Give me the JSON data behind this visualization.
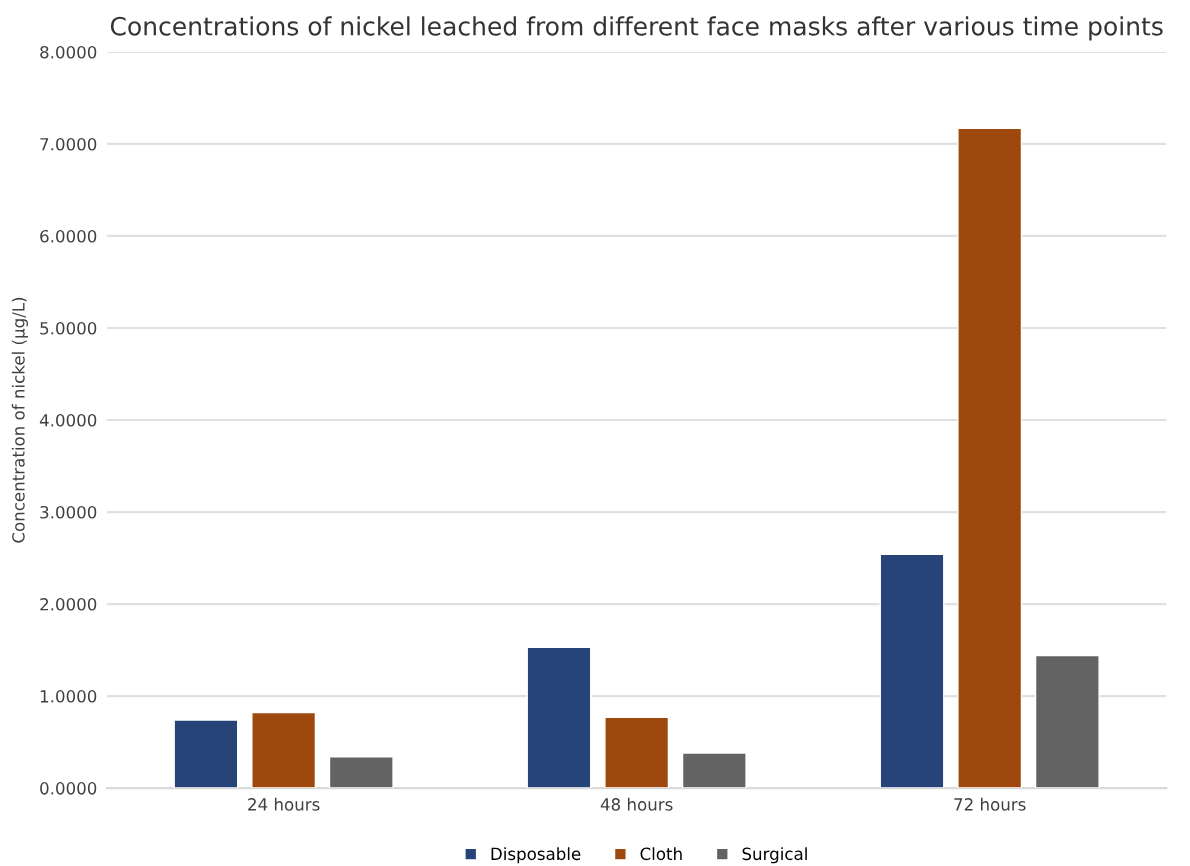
{
  "chart_data": {
    "type": "bar",
    "title": "Concentrations of nickel leached from different face masks after various time points",
    "ylabel": "Concentration of nickel (µg/L)",
    "categories": [
      "24 hours",
      "48 hours",
      "72 hours"
    ],
    "series": [
      {
        "name": "Disposable",
        "color": "#264478",
        "values": [
          0.74,
          1.53,
          2.54
        ]
      },
      {
        "name": "Cloth",
        "color": "#9e480e",
        "values": [
          0.82,
          0.77,
          7.17
        ]
      },
      {
        "name": "Surgical",
        "color": "#636363",
        "values": [
          0.34,
          0.38,
          1.44
        ]
      }
    ],
    "ylim": [
      0,
      8
    ],
    "yticks": [
      {
        "value": 0,
        "label": "0.0000"
      },
      {
        "value": 1,
        "label": "1.0000"
      },
      {
        "value": 2,
        "label": "2.0000"
      },
      {
        "value": 3,
        "label": "3.0000"
      },
      {
        "value": 4,
        "label": "4.0000"
      },
      {
        "value": 5,
        "label": "5.0000"
      },
      {
        "value": 6,
        "label": "6.0000"
      },
      {
        "value": 7,
        "label": "7.0000"
      },
      {
        "value": 8,
        "label": "8.0000"
      }
    ],
    "grid": "y",
    "legend": "bottom"
  }
}
